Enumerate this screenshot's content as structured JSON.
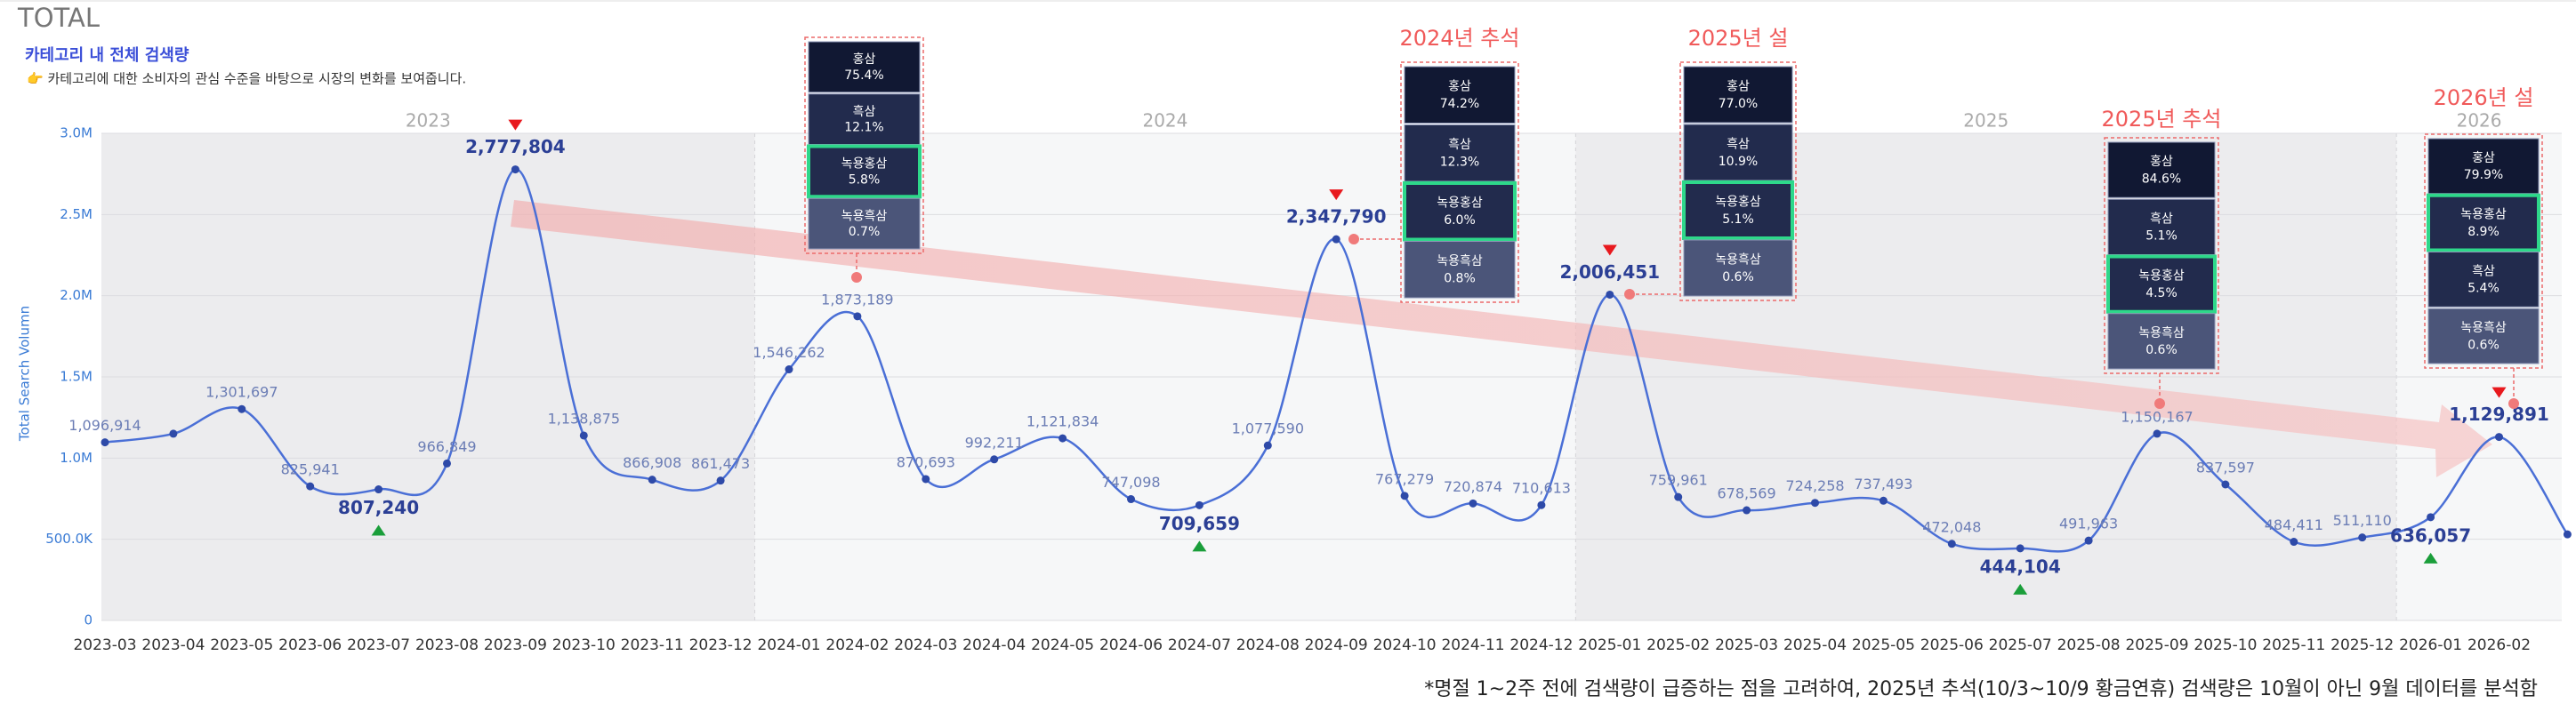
{
  "header": {
    "title": "TOTAL",
    "subtitle": "카테고리 내 전체 검색량",
    "description": "👉 카테고리에 대한 소비자의 관심 수준을 바탕으로 시장의 변화를 보여줍니다."
  },
  "chart_data": {
    "type": "line",
    "y_label": "Total Search Volumn",
    "years": [
      "2023",
      "2024",
      "2025",
      "2026"
    ],
    "categories": [
      "2023-03",
      "2023-04",
      "2023-05",
      "2023-06",
      "2023-07",
      "2023-08",
      "2023-09",
      "2023-10",
      "2023-11",
      "2023-12",
      "2024-01",
      "2024-02",
      "2024-03",
      "2024-04",
      "2024-05",
      "2024-06",
      "2024-07",
      "2024-08",
      "2024-09",
      "2024-10",
      "2024-11",
      "2024-12",
      "2025-01",
      "2025-02",
      "2025-03",
      "2025-04",
      "2025-05",
      "2025-06",
      "2025-07",
      "2025-08",
      "2025-09",
      "2025-10",
      "2025-11",
      "2025-12",
      "2026-01",
      "2026-02",
      null
    ],
    "series": [
      {
        "name": "Total Search Volumn",
        "color": "#4a6fd6",
        "values": [
          1096914,
          1150000,
          1301697,
          825941,
          807240,
          966849,
          2777804,
          1138875,
          866908,
          861473,
          1546262,
          1873189,
          870693,
          992211,
          1121834,
          747098,
          709659,
          1077590,
          2347790,
          767279,
          720874,
          710613,
          2006451,
          759961,
          678569,
          724258,
          737493,
          472048,
          444104,
          491963,
          1150167,
          837597,
          484411,
          511110,
          636057,
          1129891,
          530000
        ],
        "value_labels": [
          "1,096,914",
          null,
          "1,301,697",
          "825,941",
          "807,240",
          "966,849",
          "2,777,804",
          "1,138,875",
          "866,908",
          "861,473",
          "1,546,262",
          "1,873,189",
          "870,693",
          "992,211",
          "1,121,834",
          "747,098",
          "709,659",
          "1,077,590",
          "2,347,790",
          "767,279",
          "720,874",
          "710,613",
          "2,006,451",
          "759,961",
          "678,569",
          "724,258",
          "737,493",
          "472,048",
          "444,104",
          "491,963",
          "1,150,167",
          "837,597",
          "484,411",
          "511,110",
          "636,057",
          "1,129,891",
          null
        ]
      }
    ],
    "max_markers": [
      "2023-09",
      "2024-09",
      "2025-01",
      "2026-02"
    ],
    "min_markers": [
      "2023-07",
      "2024-07",
      "2025-07",
      "2026-01"
    ],
    "ylim": [
      0,
      3000000
    ],
    "yticks": [
      0,
      {
        "value": 500000,
        "label": "500.0K"
      },
      {
        "value": 1000000,
        "label": "1.0M"
      },
      {
        "value": 1500000,
        "label": "1.5M"
      },
      {
        "value": 2000000,
        "label": "2.0M"
      },
      {
        "value": 2500000,
        "label": "2.5M"
      },
      {
        "value": 3000000,
        "label": "3.0M"
      }
    ],
    "grid": true,
    "callouts": [
      {
        "title": null,
        "category": "2024-02",
        "rows": [
          {
            "name": "홍삼",
            "share": "75.4%"
          },
          {
            "name": "흑삼",
            "share": "12.1%"
          },
          {
            "name": "녹용홍삼",
            "share": "5.8%",
            "highlight": true
          },
          {
            "name": "녹용흑삼",
            "share": "0.7%"
          }
        ]
      },
      {
        "title": "2024년 추석",
        "category": "2024-09",
        "rows": [
          {
            "name": "홍삼",
            "share": "74.2%"
          },
          {
            "name": "흑삼",
            "share": "12.3%"
          },
          {
            "name": "녹용홍삼",
            "share": "6.0%",
            "highlight": true
          },
          {
            "name": "녹용흑삼",
            "share": "0.8%"
          }
        ]
      },
      {
        "title": "2025년 설",
        "category": "2025-01",
        "rows": [
          {
            "name": "홍삼",
            "share": "77.0%"
          },
          {
            "name": "흑삼",
            "share": "10.9%"
          },
          {
            "name": "녹용홍삼",
            "share": "5.1%",
            "highlight": true
          },
          {
            "name": "녹용흑삼",
            "share": "0.6%"
          }
        ]
      },
      {
        "title": "2025년 추석",
        "category": "2025-09",
        "rows": [
          {
            "name": "홍삼",
            "share": "84.6%"
          },
          {
            "name": "흑삼",
            "share": "5.1%"
          },
          {
            "name": "녹용홍삼",
            "share": "4.5%",
            "highlight": true
          },
          {
            "name": "녹용흑삼",
            "share": "0.6%"
          }
        ]
      },
      {
        "title": "2026년 설",
        "category": "2026-02",
        "rows": [
          {
            "name": "홍삼",
            "share": "79.9%"
          },
          {
            "name": "녹용홍삼",
            "share": "8.9%",
            "highlight": true
          },
          {
            "name": "흑삼",
            "share": "5.4%"
          },
          {
            "name": "녹용흑삼",
            "share": "0.6%"
          }
        ]
      }
    ]
  },
  "footnote": "*명절 1~2주 전에 검색량이 급증하는 점을 고려하여, 2025년 추석(10/3~10/9 황금연휴) 검색량은 10월이 아닌 9월 데이터를 분석함"
}
